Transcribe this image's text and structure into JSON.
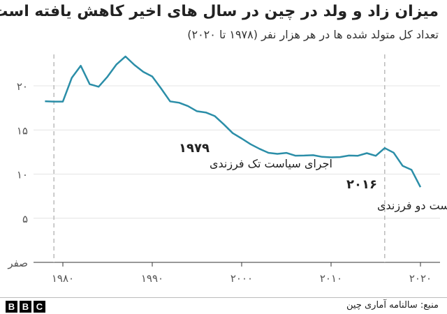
{
  "chart_data": {
    "type": "line",
    "title": "میزان زاد و ولد در چین در سال های اخیر کاهش یافته است",
    "subtitle": "تعداد کل متولد شده ها  در هر هزار نفر (۱۹۷۸ تا ۲۰۲۰)",
    "xlim": [
      1978,
      2020
    ],
    "ylim": [
      0,
      25
    ],
    "grid": true,
    "line_color": "#2b8ea8",
    "x_ticks": [
      {
        "value": 1980,
        "label": "۱۹۸۰"
      },
      {
        "value": 1990,
        "label": "۱۹۹۰"
      },
      {
        "value": 2000,
        "label": "۲۰۰۰"
      },
      {
        "value": 2010,
        "label": "۲۰۱۰"
      },
      {
        "value": 2020,
        "label": "۲۰۲۰"
      }
    ],
    "y_ticks": [
      {
        "value": 0,
        "label": "صفر"
      },
      {
        "value": 5,
        "label": "۵"
      },
      {
        "value": 10,
        "label": "۱۰"
      },
      {
        "value": 15,
        "label": "۱۵"
      },
      {
        "value": 20,
        "label": "۲۰"
      }
    ],
    "x": [
      1978,
      1979,
      1980,
      1981,
      1982,
      1983,
      1984,
      1985,
      1986,
      1987,
      1988,
      1989,
      1990,
      1991,
      1992,
      1993,
      1994,
      1995,
      1996,
      1997,
      1998,
      1999,
      2000,
      2001,
      2002,
      2003,
      2004,
      2005,
      2006,
      2007,
      2008,
      2009,
      2010,
      2011,
      2012,
      2013,
      2014,
      2015,
      2016,
      2017,
      2018,
      2019,
      2020
    ],
    "values": [
      18.25,
      18.21,
      18.21,
      20.91,
      22.28,
      20.19,
      19.9,
      21.04,
      22.43,
      23.33,
      22.37,
      21.58,
      21.06,
      19.68,
      18.24,
      18.09,
      17.7,
      17.12,
      16.98,
      16.57,
      15.64,
      14.64,
      14.03,
      13.38,
      12.86,
      12.41,
      12.29,
      12.4,
      12.09,
      12.1,
      12.14,
      11.95,
      11.9,
      11.93,
      12.1,
      12.08,
      12.37,
      12.07,
      12.95,
      12.43,
      10.94,
      10.48,
      8.52
    ],
    "annotations": [
      {
        "year": 1979,
        "label": "۱۹۷۹",
        "text": "اجرای سیاست تک فرزندی"
      },
      {
        "year": 2016,
        "label": "۲۰۱۶",
        "text": "اجرای سیاست دو فرزندی"
      }
    ]
  },
  "footer": {
    "source": "منبع: سالنامه آماری چین",
    "logo": "BBC"
  }
}
